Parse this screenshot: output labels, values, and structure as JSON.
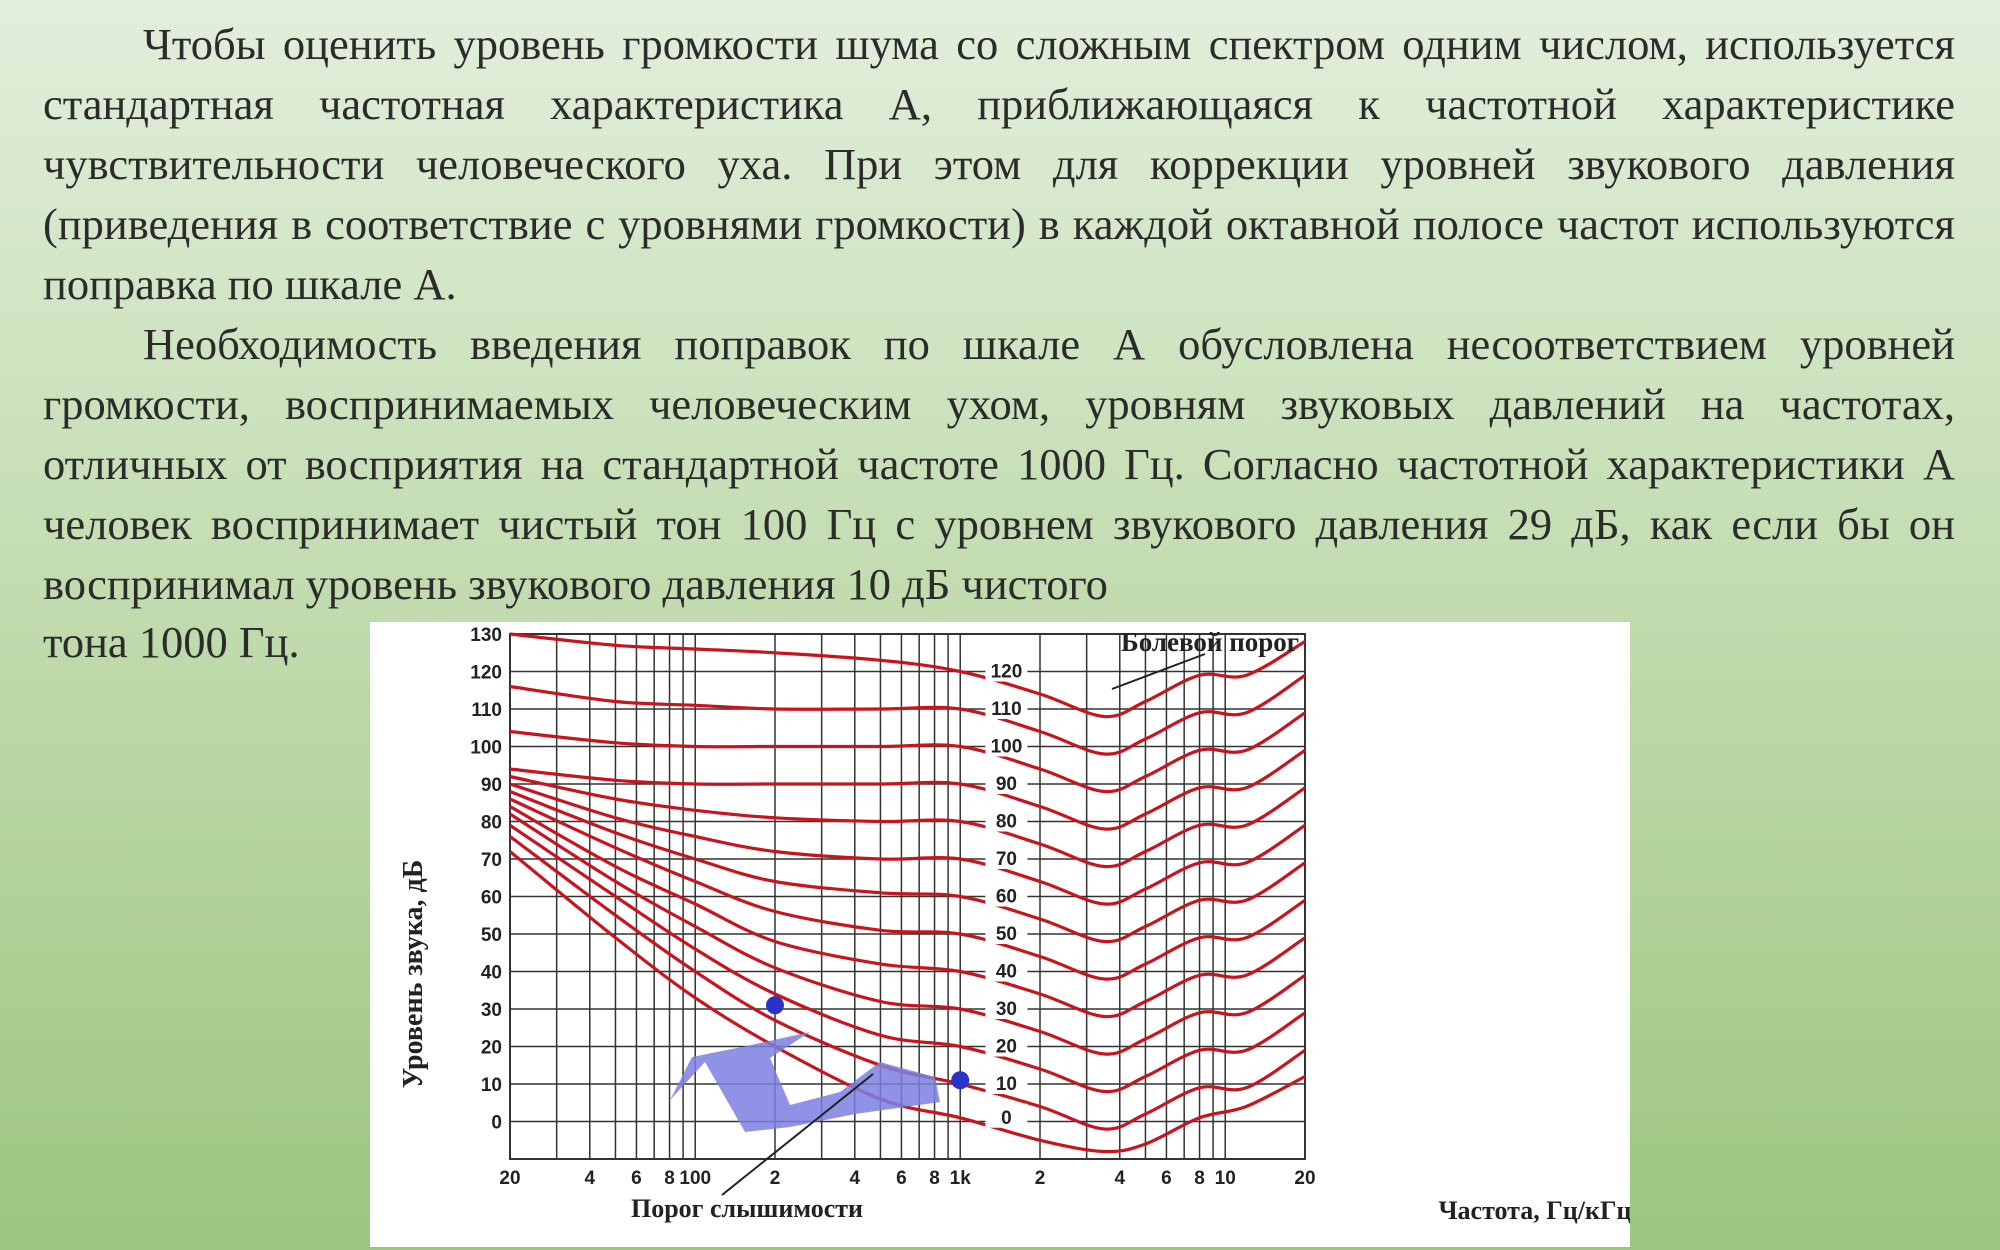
{
  "slide": {
    "paragraph_1": "Чтобы оценить уровень громкости шума со сложным  спектром одним числом, используется стандартная частотная характеристика А, приближающаяся к частотной характеристике чувствительности человеческого уха. При этом для коррекции уровней звукового давления (приведения в соответствие  с уровнями громкости)  в каждой октавной полосе частот используются поправка по шкале А.",
    "paragraph_2": "Необходимость введения поправок по шкале А обусловлена несоответствием уровней громкости, воспринимаемых человеческим ухом, уровням звуковых давлений на частотах, отличных от восприятия на стандартной частоте 1000 Гц. Согласно частотной характеристики  А человек  воспринимает  чистый  тон  100  Гц  с  уровнем  звукового давления 29 дБ, как если бы он воспринимал уровень звукового давления 10 дБ чистого",
    "paragraph_2_tail": "тона 1000 Гц."
  },
  "chart_data": {
    "type": "line",
    "ylabel": "Уровень звука, дБ",
    "xlabel": "Частота, Гц/кГц",
    "annotations": {
      "pain_threshold": "Болевой порог",
      "hearing_threshold": "Порог слышимости"
    },
    "xscale": "log",
    "xlim": [
      20,
      20000
    ],
    "ylim": [
      -10,
      130
    ],
    "grid": true,
    "y_ticks": [
      "130",
      "120",
      "110",
      "100",
      "90",
      "80",
      "70",
      "60",
      "50",
      "40",
      "30",
      "20",
      "10",
      "0"
    ],
    "y_tick_values": [
      130,
      120,
      110,
      100,
      90,
      80,
      70,
      60,
      50,
      40,
      30,
      20,
      10,
      0
    ],
    "x_ticks": [
      "20",
      "4",
      "6",
      "8",
      "100",
      "2",
      "4",
      "6",
      "8",
      "1k",
      "2",
      "4",
      "6",
      "8",
      "10",
      "20"
    ],
    "x_tick_values": [
      20,
      40,
      60,
      80,
      100,
      200,
      400,
      600,
      800,
      1000,
      2000,
      4000,
      6000,
      8000,
      10000,
      20000
    ],
    "phon_labels": [
      "120",
      "110",
      "100",
      "90",
      "80",
      "70",
      "60",
      "50",
      "40",
      "30",
      "20",
      "10",
      "0"
    ],
    "line_color": "#c8141e",
    "arrow_color": "#7b7fe0",
    "marker_color": "#2a33c8",
    "x": [
      20,
      50,
      100,
      200,
      500,
      1000,
      2000,
      3500,
      5000,
      8000,
      12000,
      20000
    ],
    "series": [
      {
        "values": [
          130,
          127,
          126,
          125,
          123,
          120,
          114,
          108,
          112,
          119,
          119,
          128
        ]
      },
      {
        "values": [
          116,
          112,
          111,
          110,
          110,
          110,
          104,
          98,
          102,
          109,
          109,
          119
        ]
      },
      {
        "values": [
          104,
          101,
          100,
          100,
          100,
          100,
          94,
          88,
          92,
          99,
          99,
          109
        ]
      },
      {
        "values": [
          94,
          91,
          90,
          90,
          90,
          90,
          84,
          78,
          82,
          89,
          89,
          99
        ]
      },
      {
        "values": [
          92,
          86,
          83,
          81,
          80,
          80,
          74,
          68,
          72,
          79,
          79,
          89
        ]
      },
      {
        "values": [
          90,
          81,
          76,
          72,
          70,
          70,
          64,
          58,
          62,
          69,
          69,
          79
        ]
      },
      {
        "values": [
          88,
          77,
          70,
          64,
          61,
          60,
          54,
          48,
          52,
          59,
          59,
          69
        ]
      },
      {
        "values": [
          86,
          73,
          64,
          56,
          51,
          50,
          44,
          38,
          42,
          49,
          49,
          59
        ]
      },
      {
        "values": [
          84,
          68,
          58,
          48,
          42,
          40,
          34,
          28,
          32,
          39,
          39,
          49
        ]
      },
      {
        "values": [
          82,
          64,
          52,
          41,
          32,
          30,
          24,
          18,
          22,
          29,
          29,
          39
        ]
      },
      {
        "values": [
          79,
          60,
          46,
          34,
          23,
          20,
          14,
          8,
          12,
          19,
          19,
          29
        ]
      },
      {
        "values": [
          76,
          55,
          40,
          27,
          15,
          10,
          4,
          -2,
          2,
          9,
          9,
          19
        ]
      },
      {
        "values": [
          72,
          49,
          33,
          20,
          6,
          1,
          -5,
          -8,
          -6,
          1,
          4,
          12
        ]
      }
    ],
    "highlighted_points": [
      {
        "x": 200,
        "y": 31
      },
      {
        "x": 1000,
        "y": 11
      }
    ]
  }
}
